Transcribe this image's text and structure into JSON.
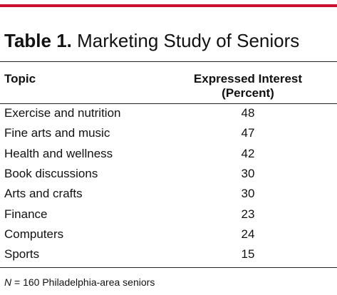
{
  "header": {
    "label": "Table 1.",
    "title": "Marketing Study of Seniors"
  },
  "table": {
    "columns": [
      "Topic",
      [
        "Expressed Interest",
        "(Percent)"
      ]
    ],
    "rows": [
      [
        "Exercise and nutrition",
        48
      ],
      [
        "Fine arts and music",
        47
      ],
      [
        "Health and wellness",
        42
      ],
      [
        "Book discussions",
        30
      ],
      [
        "Arts and crafts",
        30
      ],
      [
        "Finance",
        23
      ],
      [
        "Computers",
        24
      ],
      [
        "Sports",
        15
      ]
    ]
  },
  "footnote": {
    "variable": "N",
    "text": "= 160 Philadelphia-area seniors"
  }
}
